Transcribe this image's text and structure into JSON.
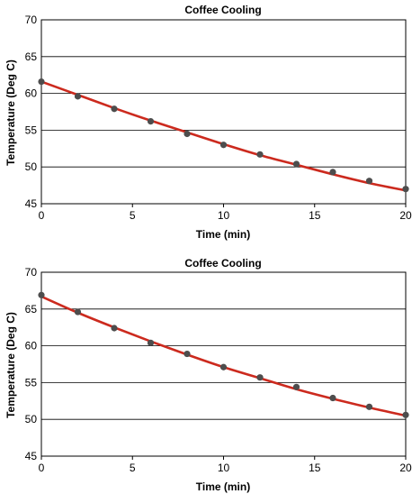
{
  "chart_data": [
    {
      "type": "scatter",
      "title": "Coffee Cooling",
      "xlabel": "Time (min)",
      "ylabel": "Temperature (Deg C)",
      "xlim": [
        0,
        20
      ],
      "ylim": [
        45,
        70
      ],
      "xticks": [
        0,
        5,
        10,
        15,
        20
      ],
      "yticks": [
        45,
        50,
        55,
        60,
        65,
        70
      ],
      "grid": "horizontal",
      "points": {
        "x": [
          0,
          2,
          4,
          6,
          8,
          10,
          12,
          14,
          16,
          18,
          20
        ],
        "y": [
          61.6,
          59.6,
          57.9,
          56.2,
          54.5,
          53.0,
          51.7,
          50.4,
          49.3,
          48.1,
          47.0
        ]
      },
      "fit": {
        "type": "exponential",
        "x": [
          0,
          2,
          4,
          6,
          8,
          10,
          12,
          14,
          16,
          18,
          20
        ],
        "y": [
          61.6,
          59.8,
          58.0,
          56.3,
          54.7,
          53.1,
          51.6,
          50.3,
          49.0,
          47.8,
          46.8
        ]
      },
      "colors": {
        "points": "#4d4d4d",
        "fit_line": "#cc2a1e"
      }
    },
    {
      "type": "scatter",
      "title": "Coffee Cooling",
      "xlabel": "Time (min)",
      "ylabel": "Temperature (Deg C)",
      "xlim": [
        0,
        20
      ],
      "ylim": [
        45,
        70
      ],
      "xticks": [
        0,
        5,
        10,
        15,
        20
      ],
      "yticks": [
        45,
        50,
        55,
        60,
        65,
        70
      ],
      "grid": "horizontal",
      "points": {
        "x": [
          0,
          2,
          4,
          6,
          8,
          10,
          12,
          14,
          16,
          18,
          20
        ],
        "y": [
          66.9,
          64.6,
          62.4,
          60.4,
          58.9,
          57.1,
          55.7,
          54.4,
          52.9,
          51.7,
          50.6
        ]
      },
      "fit": {
        "type": "exponential",
        "x": [
          0,
          2,
          4,
          6,
          8,
          10,
          12,
          14,
          16,
          18,
          20
        ],
        "y": [
          66.7,
          64.5,
          62.5,
          60.6,
          58.8,
          57.1,
          55.6,
          54.1,
          52.8,
          51.6,
          50.5
        ]
      },
      "colors": {
        "points": "#4d4d4d",
        "fit_line": "#cc2a1e"
      }
    }
  ]
}
